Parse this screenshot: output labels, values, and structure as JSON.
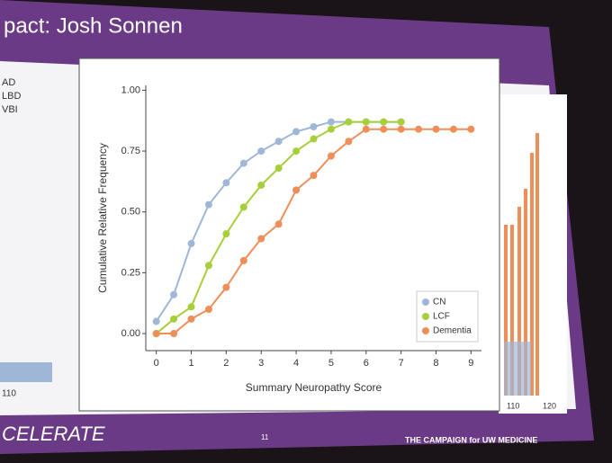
{
  "slide": {
    "title": "pact: Josh Sonnen",
    "side_labels": [
      "AD",
      "LBD",
      "VBI"
    ],
    "left_tick": "110",
    "footer_left": "CELERATE",
    "page_number": "11",
    "footer_right": "THE CAMPAIGN for UW MEDICINE",
    "right_ticks": [
      "110",
      "120"
    ]
  },
  "chart_data": {
    "type": "line",
    "xlabel": "Summary Neuropathy Score",
    "ylabel": "Cumulative Relative Frequency",
    "xlim": [
      -0.3,
      9.3
    ],
    "xticks": [
      0,
      1,
      2,
      3,
      4,
      5,
      6,
      7,
      8,
      9
    ],
    "ylim": [
      -0.07,
      1.02
    ],
    "yticks": [
      {
        "value": 0,
        "label": "0.00"
      },
      {
        "value": 0.25,
        "label": "0.25"
      },
      {
        "value": 0.5,
        "label": "0.50"
      },
      {
        "value": 0.75,
        "label": "0.75"
      },
      {
        "value": 1,
        "label": "1.00"
      }
    ],
    "legend": "lower right",
    "series": [
      {
        "name": "CN",
        "color": "#9fb7d6",
        "x": [
          0,
          0.5,
          1,
          1.5,
          2,
          2.5,
          3,
          3.5,
          4,
          4.5,
          5,
          5.5,
          6,
          6.5,
          7
        ],
        "values": [
          0.05,
          0.16,
          0.37,
          0.53,
          0.62,
          0.7,
          0.75,
          0.79,
          0.83,
          0.85,
          0.87,
          0.87,
          0.87,
          0.87,
          0.87
        ]
      },
      {
        "name": "LCF",
        "color": "#a6cf3a",
        "x": [
          0,
          0.5,
          1,
          1.5,
          2,
          2.5,
          3,
          3.5,
          4,
          4.5,
          5,
          5.5,
          6,
          6.5,
          7
        ],
        "values": [
          0,
          0.06,
          0.11,
          0.28,
          0.41,
          0.52,
          0.61,
          0.68,
          0.75,
          0.8,
          0.84,
          0.87,
          0.87,
          0.87,
          0.87
        ]
      },
      {
        "name": "Dementia",
        "color": "#ee8f5a",
        "x": [
          0,
          0.5,
          1,
          1.5,
          2,
          2.5,
          3,
          3.5,
          4,
          4.5,
          5,
          5.5,
          6,
          6.5,
          7,
          7.5,
          8,
          8.5,
          9
        ],
        "values": [
          0,
          0,
          0.06,
          0.1,
          0.19,
          0.3,
          0.39,
          0.45,
          0.59,
          0.65,
          0.73,
          0.79,
          0.84,
          0.84,
          0.84,
          0.84,
          0.84,
          0.84,
          0.84
        ]
      }
    ]
  }
}
